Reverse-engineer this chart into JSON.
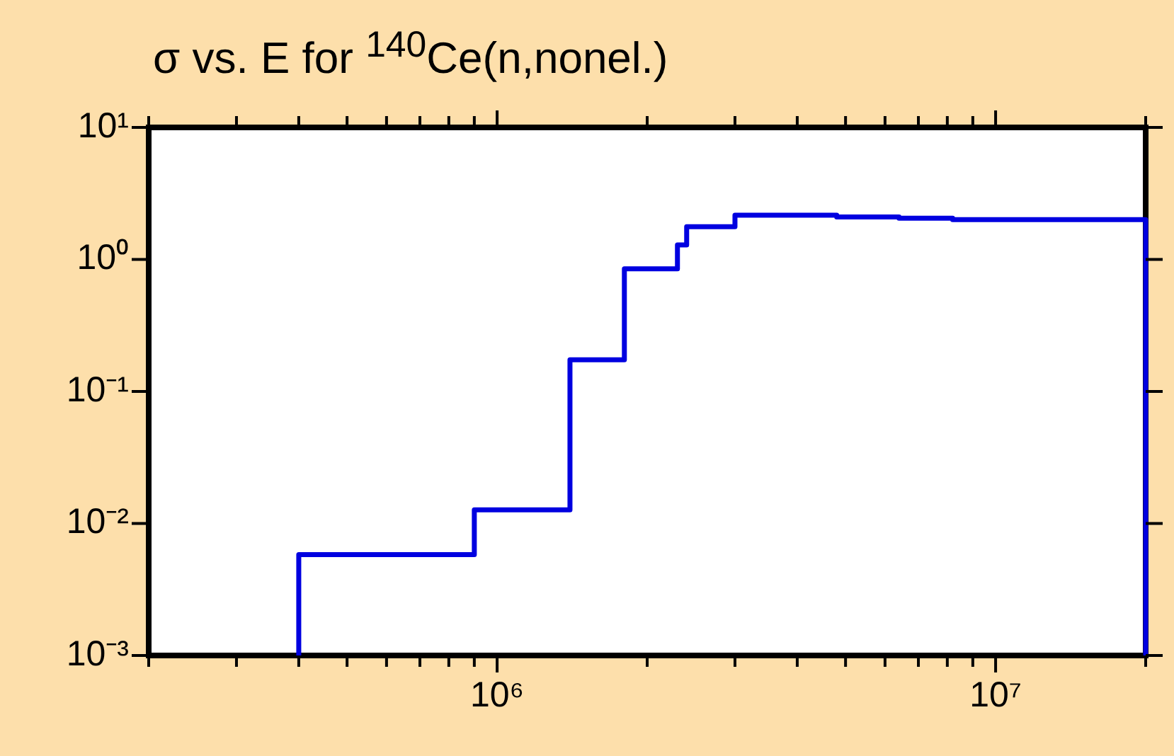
{
  "chart_data": {
    "type": "step",
    "title": "σ vs. E for $^{140}$Ce(n,nonel.)",
    "log": "xy",
    "grid": false,
    "legend": false,
    "line_style": "solid",
    "marker": "none",
    "xlim": [
      200000,
      20000000
    ],
    "xticks": [
      {
        "value": 200000,
        "label": null
      },
      {
        "value": 300000,
        "label": null
      },
      {
        "value": 400000,
        "label": null
      },
      {
        "value": 500000,
        "label": null
      },
      {
        "value": 600000,
        "label": null
      },
      {
        "value": 700000,
        "label": null
      },
      {
        "value": 800000,
        "label": null
      },
      {
        "value": 900000,
        "label": null
      },
      {
        "value": 1000000,
        "label": "10⁶"
      },
      {
        "value": 2000000,
        "label": null
      },
      {
        "value": 3000000,
        "label": null
      },
      {
        "value": 4000000,
        "label": null
      },
      {
        "value": 5000000,
        "label": null
      },
      {
        "value": 6000000,
        "label": null
      },
      {
        "value": 7000000,
        "label": null
      },
      {
        "value": 8000000,
        "label": null
      },
      {
        "value": 9000000,
        "label": null
      },
      {
        "value": 10000000,
        "label": "10⁷"
      },
      {
        "value": 20000000,
        "label": null
      }
    ],
    "ylim": [
      0.001,
      10
    ],
    "yticks": [
      {
        "value": 0.001,
        "label": "10⁻³"
      },
      {
        "value": 0.01,
        "label": "10⁻²"
      },
      {
        "value": 0.1,
        "label": "10⁻¹"
      },
      {
        "value": 1,
        "label": "10⁰"
      },
      {
        "value": 10,
        "label": "10¹"
      }
    ],
    "series": [
      {
        "color": "#0000e0",
        "x": [
          400000,
          400000,
          900000,
          1400000,
          1800000,
          2300000,
          2400000,
          3000000,
          4800000,
          6400000,
          8200000,
          20000000
        ],
        "values": [
          0.001,
          0.0058,
          0.0127,
          0.174,
          0.85,
          1.29,
          1.77,
          2.16,
          2.1,
          2.05,
          2.0,
          0.001
        ]
      }
    ]
  }
}
